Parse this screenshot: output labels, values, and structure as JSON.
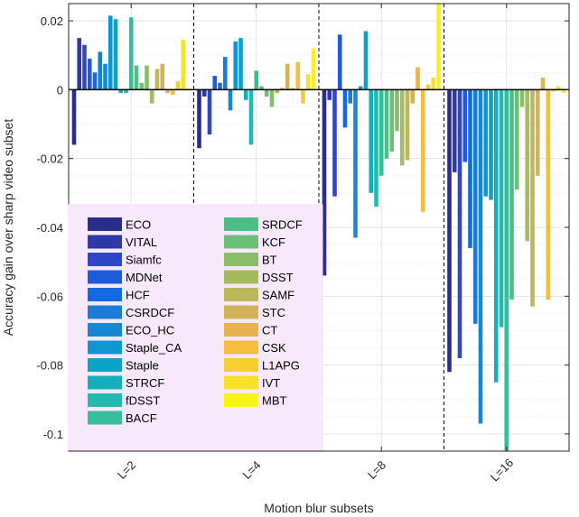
{
  "chart_data": {
    "type": "bar",
    "xlabel": "Motion blur subsets",
    "ylabel": "Accuracy gain over sharp video subset",
    "ylim": [
      -0.105,
      0.025
    ],
    "yticks": [
      0.02,
      0,
      -0.02,
      -0.04,
      -0.06,
      -0.08,
      -0.1
    ],
    "ytick_labels": [
      "0.02",
      "0",
      "-0.02",
      "-0.04",
      "-0.06",
      "-0.08",
      "-0.1"
    ],
    "categories": [
      "L=2",
      "L=4",
      "L=8",
      "L=16"
    ],
    "grid": true,
    "legend_position": "bottom-left",
    "series": [
      {
        "name": "ECO",
        "color": "#2a2d8a",
        "values": [
          -0.016,
          -0.017,
          -0.054,
          -0.082
        ]
      },
      {
        "name": "VITAL",
        "color": "#2e38a6",
        "values": [
          0.015,
          -0.002,
          -0.003,
          -0.024
        ]
      },
      {
        "name": "Siamfc",
        "color": "#2f47c4",
        "values": [
          0.013,
          -0.013,
          -0.031,
          -0.078
        ]
      },
      {
        "name": "MDNet",
        "color": "#1e5ad9",
        "values": [
          0.009,
          0.004,
          0.016,
          -0.021
        ]
      },
      {
        "name": "HCF",
        "color": "#136ae0",
        "values": [
          0.005,
          0.002,
          -0.011,
          -0.046
        ]
      },
      {
        "name": "CSRDCF",
        "color": "#1c7bd6",
        "values": [
          0.011,
          0.0095,
          -0.004,
          -0.068
        ]
      },
      {
        "name": "ECO_HC",
        "color": "#1588d4",
        "values": [
          0.0075,
          -0.006,
          -0.043,
          -0.097
        ]
      },
      {
        "name": "Staple_CA",
        "color": "#0f96d0",
        "values": [
          0.0215,
          0.014,
          0.001,
          -0.031
        ]
      },
      {
        "name": "Staple",
        "color": "#0aa3c8",
        "values": [
          0.0205,
          0.015,
          0.017,
          -0.032
        ]
      },
      {
        "name": "STRCF",
        "color": "#14afbc",
        "values": [
          -0.001,
          -0.003,
          -0.03,
          -0.085
        ]
      },
      {
        "name": "fDSST",
        "color": "#24b9ac",
        "values": [
          -0.001,
          -0.016,
          -0.034,
          -0.069
        ]
      },
      {
        "name": "BACF",
        "color": "#36be98",
        "values": [
          0.021,
          0.0055,
          -0.025,
          -0.105
        ]
      },
      {
        "name": "SRDCF",
        "color": "#4dbf86",
        "values": [
          0.007,
          0.001,
          -0.02,
          -0.061
        ]
      },
      {
        "name": "KCF",
        "color": "#6bbf76",
        "values": [
          0.002,
          -0.002,
          -0.018,
          -0.029
        ]
      },
      {
        "name": "BT",
        "color": "#8abd68",
        "values": [
          0.007,
          -0.005,
          -0.012,
          -0.005
        ]
      },
      {
        "name": "DSST",
        "color": "#a5bb5e",
        "values": [
          -0.004,
          -0.001,
          -0.022,
          -0.044
        ]
      },
      {
        "name": "SAMF",
        "color": "#bdb75b",
        "values": [
          0.006,
          0.0005,
          -0.0205,
          -0.063
        ]
      },
      {
        "name": "STC",
        "color": "#d2b35a",
        "values": [
          0.0075,
          0.0075,
          -0.004,
          -0.025
        ]
      },
      {
        "name": "CT",
        "color": "#e8b24f",
        "values": [
          -0.001,
          0.0005,
          0.0065,
          0.0035
        ]
      },
      {
        "name": "CSK",
        "color": "#f5bd3d",
        "values": [
          -0.0015,
          0.008,
          -0.0355,
          -0.061
        ]
      },
      {
        "name": "L1APG",
        "color": "#f6ce2e",
        "values": [
          0.0025,
          -0.004,
          0.0015,
          -0.0005
        ]
      },
      {
        "name": "IVT",
        "color": "#f9e126",
        "values": [
          0.0145,
          0.0045,
          0.0035,
          0.001
        ]
      },
      {
        "name": "MBT",
        "color": "#f7f316",
        "values": [
          0.0003,
          0.012,
          0.025,
          -0.001
        ]
      }
    ]
  }
}
